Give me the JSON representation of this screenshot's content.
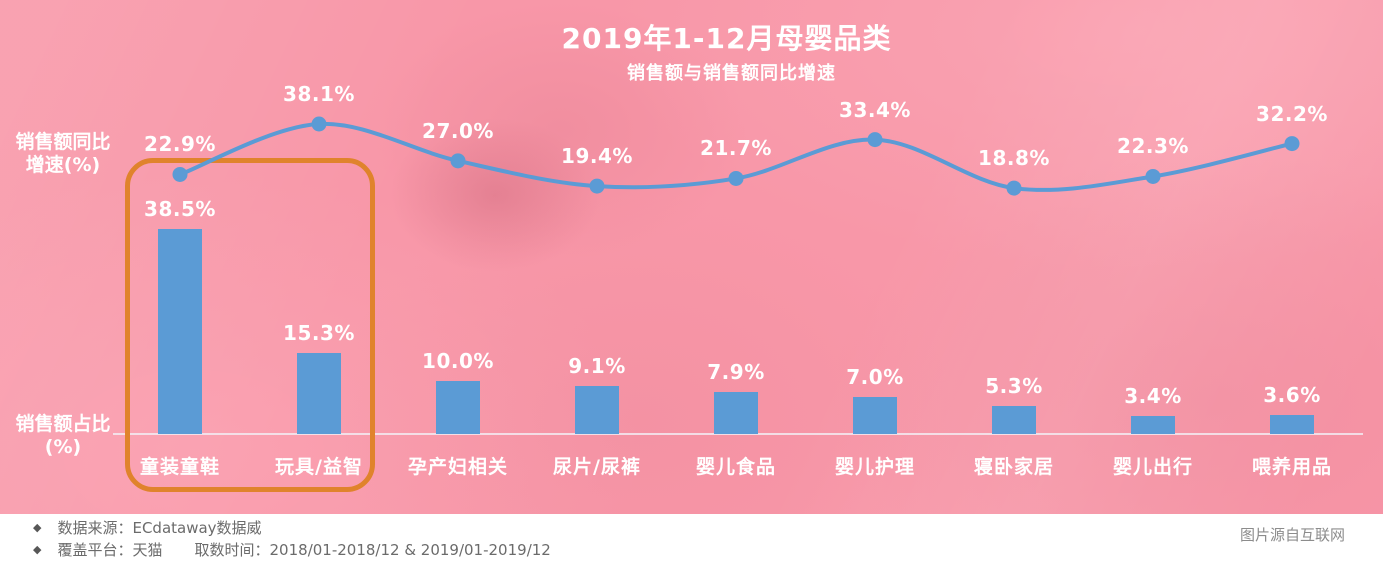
{
  "title": "2019年1-12月母婴品类",
  "subtitle": "销售额与销售额同比增速",
  "axis": {
    "growth_lines": [
      "销售额同比",
      "增速(%)"
    ],
    "share_lines": [
      "销售额占比",
      "(%)"
    ]
  },
  "chart_data": {
    "type": "combo",
    "categories": [
      "童装童鞋",
      "玩具/益智",
      "孕产妇相关",
      "尿片/尿裤",
      "婴儿食品",
      "婴儿护理",
      "寝卧家居",
      "婴儿出行",
      "喂养用品"
    ],
    "series": [
      {
        "name": "销售额同比增速(%)",
        "type": "line",
        "values": [
          22.9,
          38.1,
          27.0,
          19.4,
          21.7,
          33.4,
          18.8,
          22.3,
          32.2
        ]
      },
      {
        "name": "销售额占比(%)",
        "type": "bar",
        "values": [
          38.5,
          15.3,
          10.0,
          9.1,
          7.9,
          7.0,
          5.3,
          3.4,
          3.6
        ]
      }
    ],
    "value_suffix": "%",
    "data_labels": "on, one decimal place",
    "legend_position": "none (series named by left axis captions)",
    "grid": "off",
    "highlighted_categories": [
      "童装童鞋",
      "玩具/益智"
    ]
  },
  "footer": {
    "bullet": "◆",
    "line1_label": "数据来源：",
    "line1_value": "ECdataway数据威",
    "line2_label1": "覆盖平台：",
    "line2_value1": "天猫",
    "line2_label2": "取数时间：",
    "line2_value2": "2018/01-2018/12 & 2019/01-2019/12",
    "credit": "图片源自互联网"
  },
  "colors": {
    "background_pink": "#F897A8",
    "bar_blue": "#5B9BD5",
    "line_blue": "#5B9BD5",
    "highlight_orange": "#E0832C",
    "axis_line": "#F2EFF5",
    "footer_bg": "#FFFFFF",
    "footer_text": "#6B6B6B",
    "credit_text": "#8C8C8C",
    "label_white": "#FFFFFF"
  }
}
